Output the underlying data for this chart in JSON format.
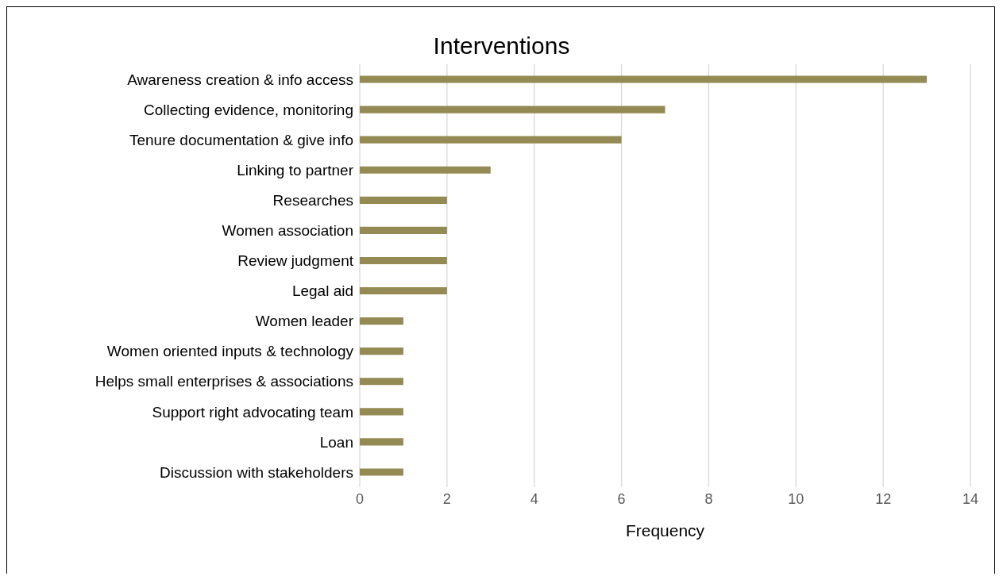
{
  "chart_data": {
    "type": "bar",
    "orientation": "horizontal",
    "title": "Interventions",
    "xlabel": "Frequency",
    "categories": [
      "Awareness creation & info access",
      "Collecting evidence, monitoring",
      "Tenure documentation & give info",
      "Linking to partner",
      "Researches",
      "Women association",
      "Review judgment",
      "Legal aid",
      "Women leader",
      "Women oriented inputs & technology",
      "Helps small enterprises & associations",
      "Support right advocating team",
      "Loan",
      "Discussion with stakeholders"
    ],
    "values": [
      13,
      7,
      6,
      3,
      2,
      2,
      2,
      2,
      1,
      1,
      1,
      1,
      1,
      1
    ],
    "color": "#948a54",
    "xlim": [
      0,
      14
    ],
    "xticks": [
      0,
      2,
      4,
      6,
      8,
      10,
      12,
      14
    ],
    "grid": "x",
    "legend": false
  }
}
